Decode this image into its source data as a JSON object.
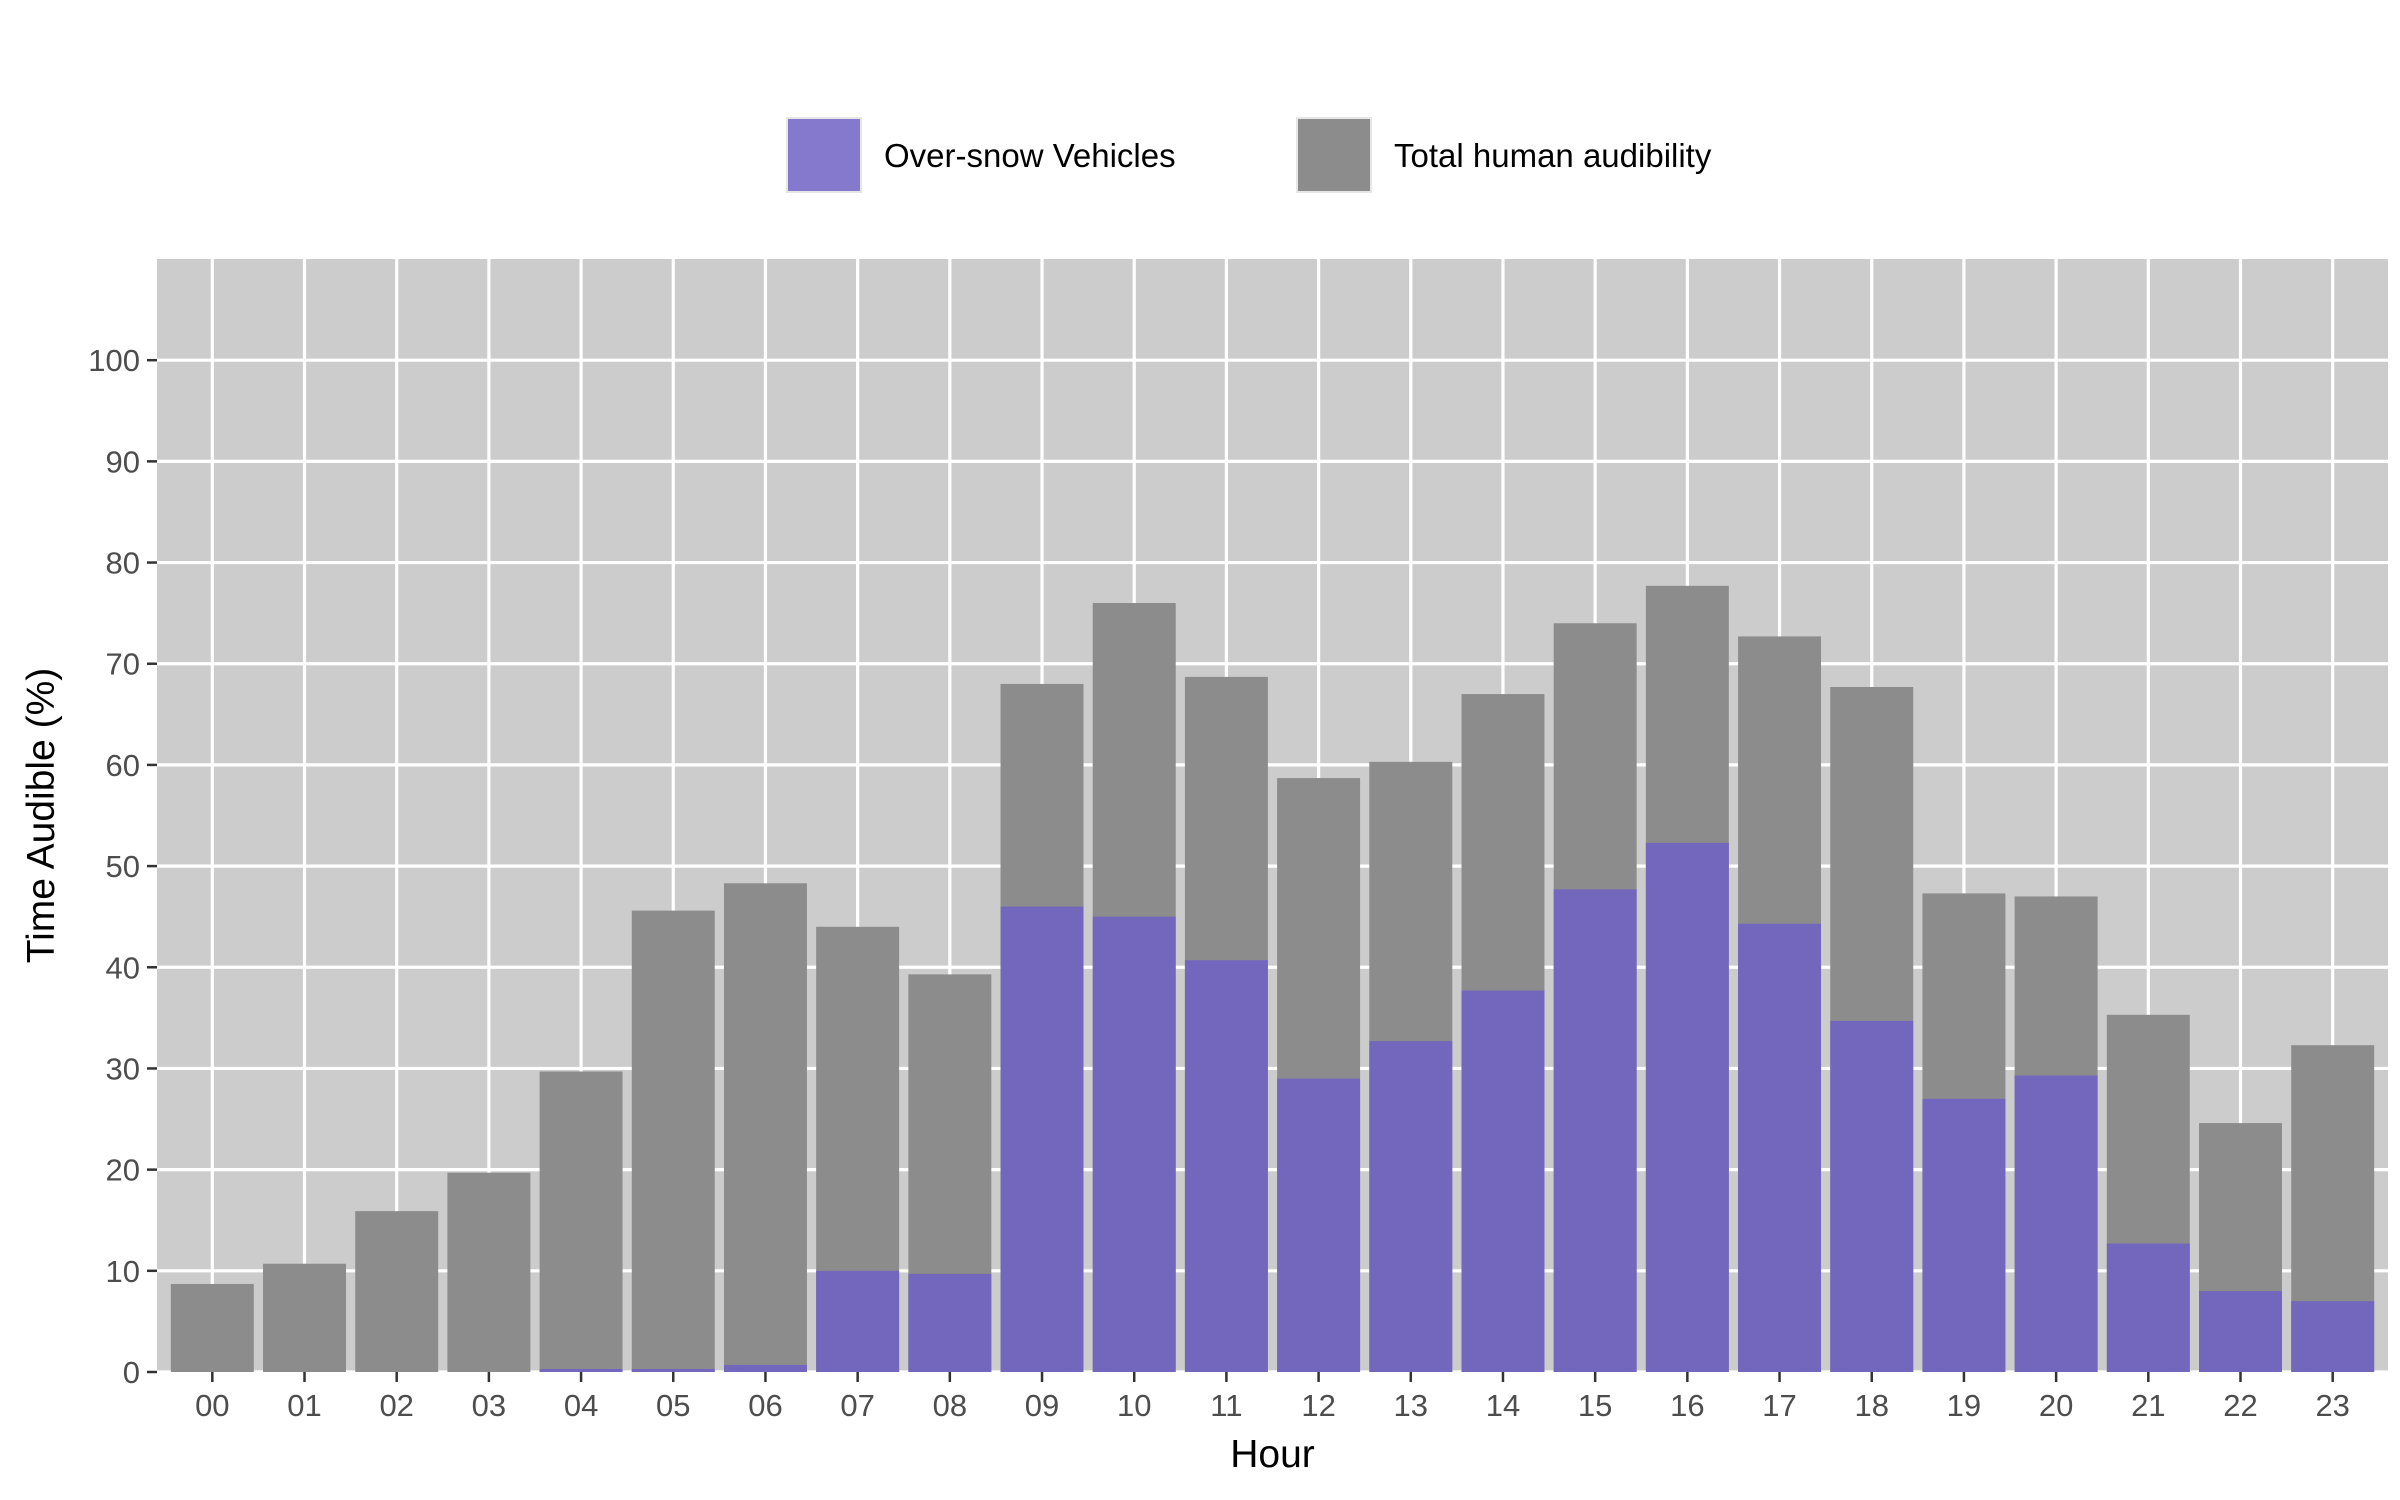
{
  "chart_data": {
    "type": "bar",
    "layout": "overlay",
    "xlabel": "Hour",
    "ylabel": "Time Audible (%)",
    "ylim": [
      0,
      110
    ],
    "yticks": [
      0,
      10,
      20,
      30,
      40,
      50,
      60,
      70,
      80,
      90,
      100
    ],
    "grid": true,
    "legend_position": "top",
    "categories": [
      "00",
      "01",
      "02",
      "03",
      "04",
      "05",
      "06",
      "07",
      "08",
      "09",
      "10",
      "11",
      "12",
      "13",
      "14",
      "15",
      "16",
      "17",
      "18",
      "19",
      "20",
      "21",
      "22",
      "23"
    ],
    "series": [
      {
        "name": "Total human audibility",
        "color": "#8c8c8c",
        "values": [
          8.7,
          10.7,
          15.9,
          19.7,
          29.7,
          45.6,
          48.3,
          44.0,
          39.3,
          68.0,
          76.0,
          68.7,
          58.7,
          60.3,
          67.0,
          74.0,
          77.7,
          72.7,
          67.7,
          47.3,
          47.0,
          35.3,
          24.6,
          32.3
        ]
      },
      {
        "name": "Over-snow Vehicles",
        "color": "#7367bd",
        "legend_color": "#8579cd",
        "values": [
          0,
          0,
          0,
          0,
          0.3,
          0.3,
          0.7,
          10.0,
          9.7,
          46.0,
          45.0,
          40.7,
          29.0,
          32.7,
          37.7,
          47.7,
          52.3,
          44.3,
          34.7,
          27.0,
          29.3,
          12.7,
          8.0,
          7.0
        ]
      }
    ],
    "legend": [
      "Over-snow Vehicles",
      "Total human audibility"
    ],
    "colors": {
      "panel_background": "#cccccc",
      "grid": "#ffffff",
      "tick": "#333333"
    }
  }
}
